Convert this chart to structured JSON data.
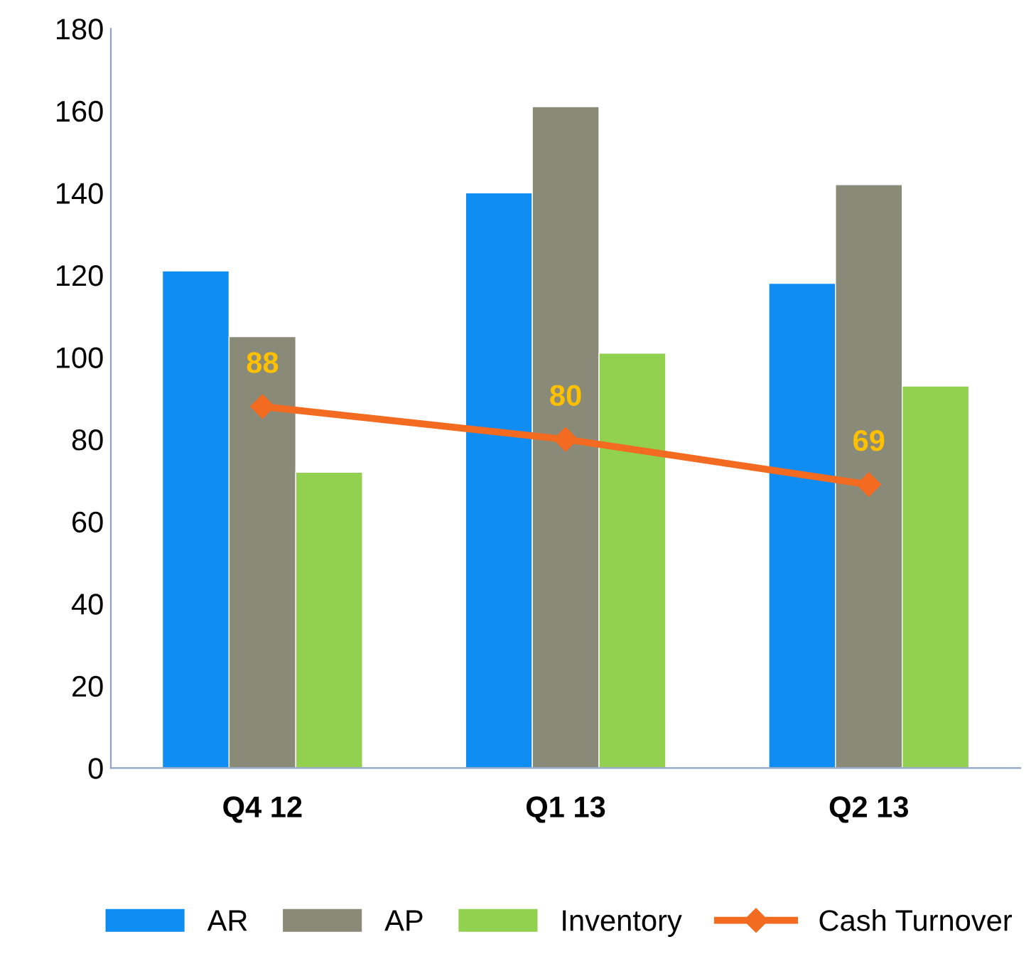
{
  "chart_data": {
    "type": "bar",
    "categories": [
      "Q4 12",
      "Q1 13",
      "Q2 13"
    ],
    "series": [
      {
        "name": "AR",
        "color": "#0f8df2",
        "values": [
          121,
          140,
          118
        ]
      },
      {
        "name": "AP",
        "color": "#898a78",
        "values": [
          105,
          161,
          142
        ]
      },
      {
        "name": "Inventory",
        "color": "#92d050",
        "values": [
          72,
          101,
          93
        ]
      },
      {
        "name": "Cash Turnover",
        "type": "line",
        "color": "#f26b21",
        "values": [
          88,
          80,
          69
        ],
        "marker": "diamond",
        "value_labels": [
          "88",
          "80",
          "69"
        ]
      }
    ],
    "ylim": [
      0,
      180
    ],
    "yticks": [
      0,
      20,
      40,
      60,
      80,
      100,
      120,
      140,
      160,
      180
    ],
    "grid": false,
    "legend": "bottom"
  }
}
